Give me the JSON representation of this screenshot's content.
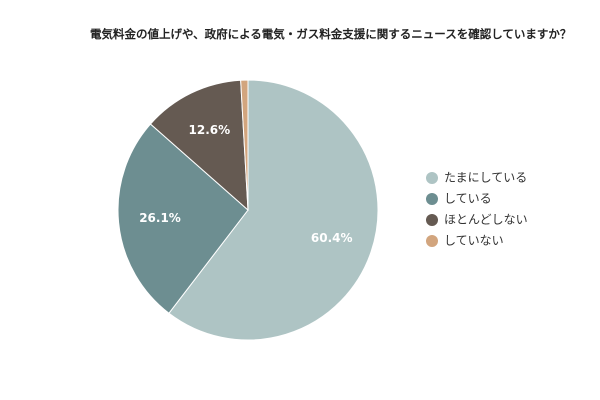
{
  "chart_data": {
    "type": "pie",
    "title": "電気料金の値上げや、政府による電気・ガス料金支援に関するニュースを確認していますか？",
    "categories": [
      "たまにしている",
      "している",
      "ほとんどしない",
      "していない"
    ],
    "values": [
      60.4,
      26.1,
      12.6,
      0.9
    ],
    "value_labels": [
      "60.4%",
      "26.1%",
      "12.6%",
      null
    ],
    "colors": [
      "#aec4c4",
      "#6d8e91",
      "#655a52",
      "#d2a57e"
    ],
    "legend": "right"
  }
}
